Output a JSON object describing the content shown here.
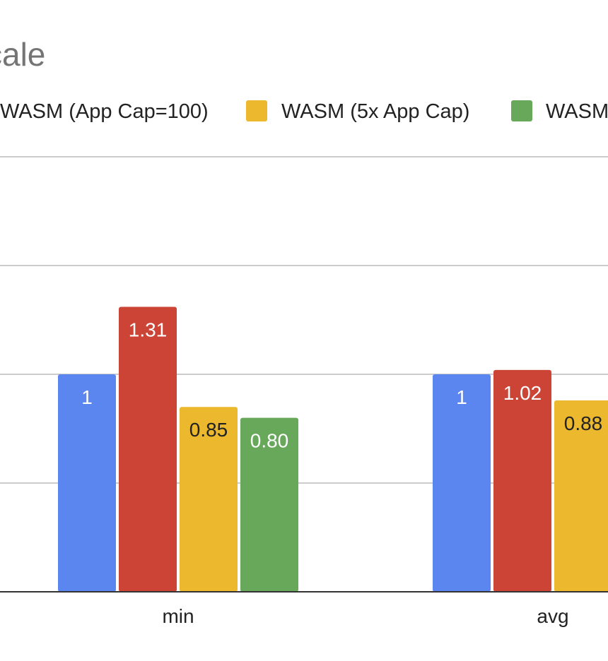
{
  "chart_data": {
    "type": "bar",
    "title": "cale",
    "categories": [
      "min",
      "avg"
    ],
    "ylim": [
      0,
      2
    ],
    "grid": true,
    "legend_position": "top",
    "series": [
      {
        "name": "",
        "color": "#5B86F0",
        "label_color": "#ffffff",
        "values": [
          1,
          1
        ],
        "labels": [
          "1",
          "1"
        ]
      },
      {
        "name": "WASM (App Cap=100)",
        "color": "#CC4436",
        "label_color": "#ffffff",
        "values": [
          1.31,
          1.02
        ],
        "labels": [
          "1.31",
          "1.02"
        ]
      },
      {
        "name": "WASM (5x App Cap)",
        "color": "#EBB82E",
        "label_color": "#222222",
        "values": [
          0.85,
          0.88
        ],
        "labels": [
          "0.85",
          "0.88"
        ]
      },
      {
        "name": "WASM",
        "color": "#67A85A",
        "label_color": "#ffffff",
        "values": [
          0.8,
          null
        ],
        "labels": [
          "0.80",
          ""
        ]
      }
    ]
  }
}
